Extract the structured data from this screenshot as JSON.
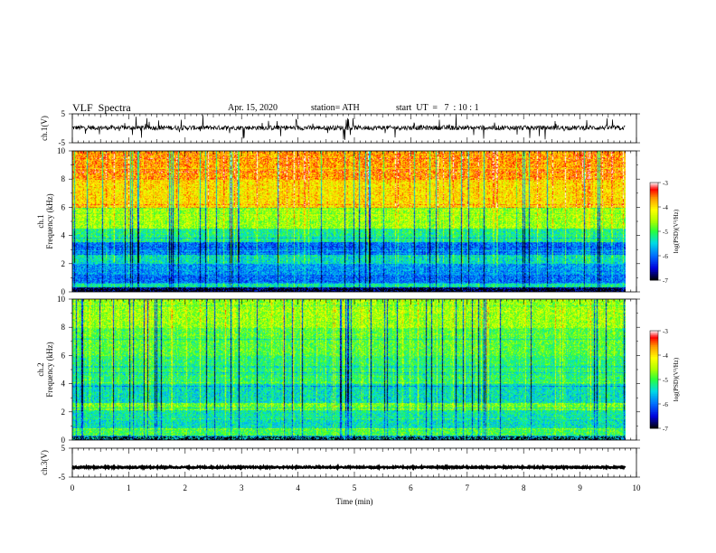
{
  "header": {
    "title": "VLF  Spectra",
    "date": "Apr. 15, 2020",
    "station": "station= ATH",
    "start": "start  UT  =   7  : 10 : 1"
  },
  "chart_data": [
    {
      "type": "line",
      "name": "ch1-waveform",
      "ylabel": "ch.1(V)",
      "ylim": [
        -5,
        5
      ],
      "yticks": [
        "5",
        "-5"
      ],
      "xlim": [
        0,
        10
      ],
      "data_end_min": 9.8,
      "baseline": 0.2,
      "color": "#000000"
    },
    {
      "type": "heatmap",
      "name": "ch1-spectrogram",
      "ylabel": "ch.1 Frequency (kHz)",
      "ylim": [
        0,
        10
      ],
      "yticks": [
        "0",
        "2",
        "4",
        "6",
        "8",
        "10"
      ],
      "xlim": [
        0,
        10
      ],
      "data_end_min": 9.8,
      "level_profile_note": "levels in log(PSD) -7..-3 by frequency band",
      "bands_khz": [
        0,
        0.3,
        0.6,
        1.2,
        2.0,
        2.6,
        3.5,
        4.5,
        6.0,
        8.0,
        10.0
      ],
      "band_levels": [
        -6.6,
        -5.3,
        -6.0,
        -5.8,
        -5.4,
        -6.0,
        -5.2,
        -4.6,
        -4.0,
        -3.7
      ],
      "colorbar": {
        "label": "log(PSD)(V²/Hz)",
        "ticks": [
          "-3",
          "-4",
          "-5",
          "-6",
          "-7"
        ],
        "range": [
          -7,
          -3
        ]
      }
    },
    {
      "type": "heatmap",
      "name": "ch2-spectrogram",
      "ylabel": "ch.2 Frequency (kHz)",
      "ylim": [
        0,
        10
      ],
      "yticks": [
        "0",
        "2",
        "4",
        "6",
        "8",
        "10"
      ],
      "xlim": [
        0,
        10
      ],
      "data_end_min": 9.8,
      "bands_khz": [
        0,
        0.3,
        0.8,
        1.6,
        2.1,
        2.6,
        4.0,
        6.0,
        8.0,
        10.0
      ],
      "band_levels": [
        -5.6,
        -5.0,
        -5.4,
        -5.3,
        -4.8,
        -5.4,
        -5.1,
        -4.9,
        -4.6
      ],
      "colorbar": {
        "label": "log(PSD)(V²/Hz)",
        "ticks": [
          "-3",
          "-4",
          "-5",
          "-6",
          "-7"
        ],
        "range": [
          -7,
          -3
        ]
      }
    },
    {
      "type": "line",
      "name": "ch3-waveform",
      "ylabel": "ch.3(V)",
      "ylim": [
        -5,
        5
      ],
      "yticks": [
        "5",
        "-5"
      ],
      "xlim": [
        0,
        10
      ],
      "data_end_min": 9.8,
      "baseline": -1.6,
      "color": "#000000"
    }
  ],
  "x_axis": {
    "label": "Time  (min)",
    "ticks": [
      "0",
      "1",
      "2",
      "3",
      "4",
      "5",
      "6",
      "7",
      "8",
      "9",
      "10"
    ]
  },
  "colors": {
    "scale": [
      "#000000",
      "#0000ff",
      "#00a0ff",
      "#00ffc8",
      "#32ff00",
      "#c8ff00",
      "#ffff00",
      "#ff9600",
      "#ff0000",
      "#ffffff"
    ]
  }
}
